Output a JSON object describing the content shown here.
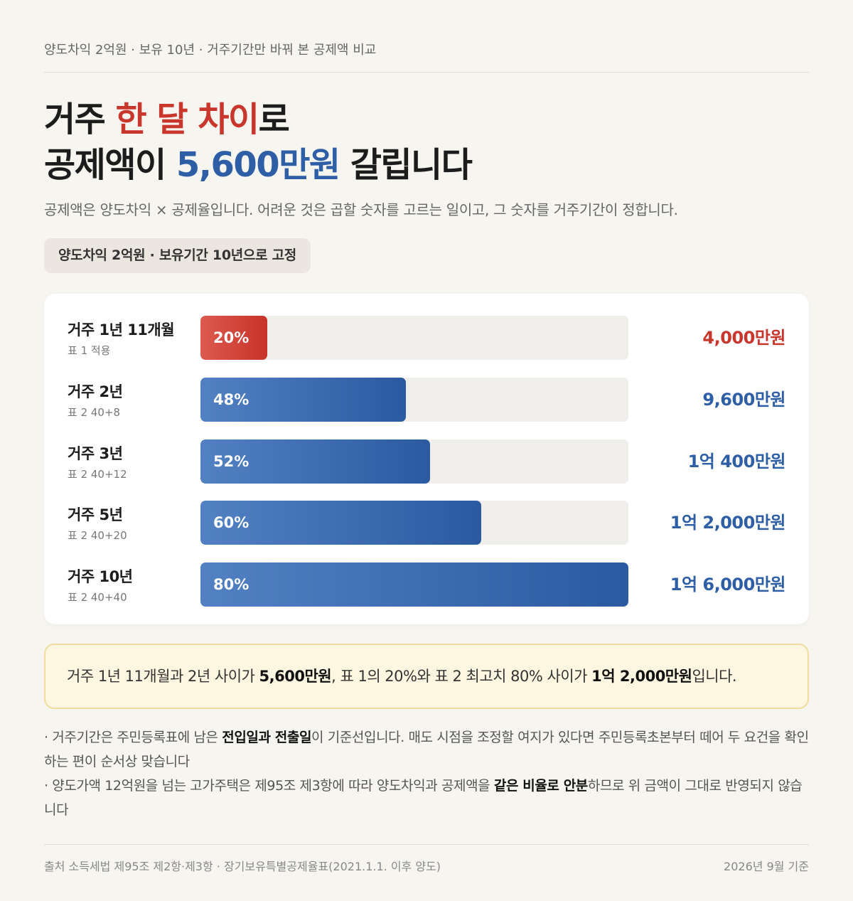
{
  "kicker": "양도차익 2억원 · 보유 10년 · 거주기간만 바꿔 본 공제액 비교",
  "title": {
    "line1_pre": "거주 ",
    "line1_accent": "한 달 차이",
    "line1_post": "로",
    "line2_pre": "공제액이 ",
    "line2_accent": "5,600만원",
    "line2_post": " 갈립니다"
  },
  "subtitle": "공제액은 양도차익 × 공제율입니다. 어려운 것은 곱할 숫자를 고르는 일이고, 그 숫자를 거주기간이 정합니다.",
  "chip": "양도차익 2억원 · 보유기간 10년으로 고정",
  "colors": {
    "blue": "#2d5ea6",
    "red": "#c9362c"
  },
  "chart_data": {
    "type": "bar",
    "orientation": "horizontal",
    "ylim": [
      0,
      80
    ],
    "categories": [
      "거주 1년 11개월",
      "거주 2년",
      "거주 3년",
      "거주 5년",
      "거주 10년"
    ],
    "category_notes": [
      "표 1 적용",
      "표 2 40+8",
      "표 2 40+12",
      "표 2 40+20",
      "표 2 40+40"
    ],
    "values": [
      20,
      48,
      52,
      60,
      80
    ],
    "value_labels": [
      "20%",
      "48%",
      "52%",
      "60%",
      "80%"
    ],
    "amounts": [
      "4,000만원",
      "9,600만원",
      "1억 400만원",
      "1억 2,000만원",
      "1억 6,000만원"
    ],
    "bar_colors": [
      "#c9362c",
      "#2d5ea6",
      "#2d5ea6",
      "#2d5ea6",
      "#2d5ea6"
    ]
  },
  "callout": {
    "p1": "거주 1년 11개월과 2년 사이가 ",
    "b1": "5,600만원",
    "p2": ", 표 1의 20%와 표 2 최고치 80% 사이가 ",
    "b2": "1억 2,000만원",
    "p3": "입니다."
  },
  "notes": {
    "n1_a": "· 거주기간은 주민등록표에 남은 ",
    "n1_b": "전입일과 전출일",
    "n1_c": "이 기준선입니다. 매도 시점을 조정할 여지가 있다면 주민등록초본부터 떼어 두 요건을 확인하는 편이 순서상 맞습니다",
    "n2_a": "· 양도가액 12억원을 넘는 고가주택은 제95조 제3항에 따라 양도차익과 공제액을 ",
    "n2_b": "같은 비율로 안분",
    "n2_c": "하므로 위 금액이 그대로 반영되지 않습니다"
  },
  "footer": {
    "source": "출처 소득세법 제95조 제2항·제3항 · 장기보유특별공제율표(2021.1.1. 이후 양도)",
    "date": "2026년 9월 기준"
  }
}
